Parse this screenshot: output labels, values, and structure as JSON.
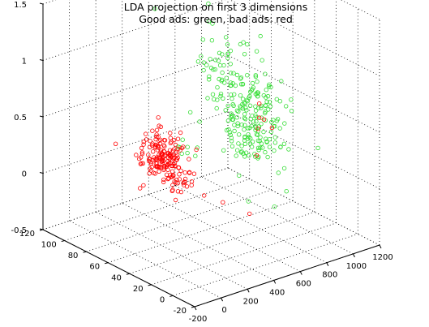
{
  "chart_data": {
    "type": "scatter",
    "projection": "3d",
    "title": "LDA projection on first 3 dimensions",
    "subtitle": "Good ads: green, bad ads: red",
    "xlabel": "",
    "ylabel": "",
    "zlabel": "",
    "x_axis": {
      "range": [
        -200,
        1200
      ],
      "ticks": [
        "-200",
        "0",
        "200",
        "400",
        "600",
        "800",
        "1000",
        "1200"
      ]
    },
    "y_axis": {
      "range": [
        -20,
        120
      ],
      "ticks": [
        "-20",
        "0",
        "20",
        "40",
        "60",
        "80",
        "100",
        "120"
      ]
    },
    "z_axis": {
      "range": [
        -0.5,
        1.5
      ],
      "ticks": [
        "-0.5",
        "0",
        "0.5",
        "1",
        "1.5"
      ]
    },
    "grid": true,
    "marker": "open-circle",
    "colors": {
      "good": "#33dd33",
      "bad": "#ff0000"
    },
    "series": [
      {
        "name": "Good ads",
        "color": "#33dd33",
        "clusters": [
          {
            "x": 700,
            "y": 35,
            "z": 0.55,
            "sx": 90,
            "sy": 12,
            "sz": 0.22,
            "count": 190
          },
          {
            "x": 560,
            "y": 50,
            "z": 0.95,
            "sx": 60,
            "sy": 10,
            "sz": 0.18,
            "count": 50
          },
          {
            "x": 150,
            "y": 40,
            "z": 0.5,
            "sx": 40,
            "sy": 10,
            "sz": 0.1,
            "count": 8
          }
        ],
        "outliers": [
          [
            320,
            80,
            1.45
          ],
          [
            560,
            60,
            1.5
          ],
          [
            980,
            10,
            0.3
          ],
          [
            700,
            5,
            0.05
          ]
        ]
      },
      {
        "name": "Bad ads",
        "color": "#ff0000",
        "clusters": [
          {
            "x": 60,
            "y": 40,
            "z": 0.4,
            "sx": 45,
            "sy": 10,
            "sz": 0.12,
            "count": 190
          },
          {
            "x": 700,
            "y": 30,
            "z": 0.55,
            "sx": 40,
            "sy": 8,
            "sz": 0.1,
            "count": 6
          }
        ],
        "outliers": [
          [
            -60,
            70,
            0.45
          ],
          [
            260,
            10,
            0.1
          ],
          [
            380,
            0,
            0.0
          ]
        ]
      }
    ]
  }
}
